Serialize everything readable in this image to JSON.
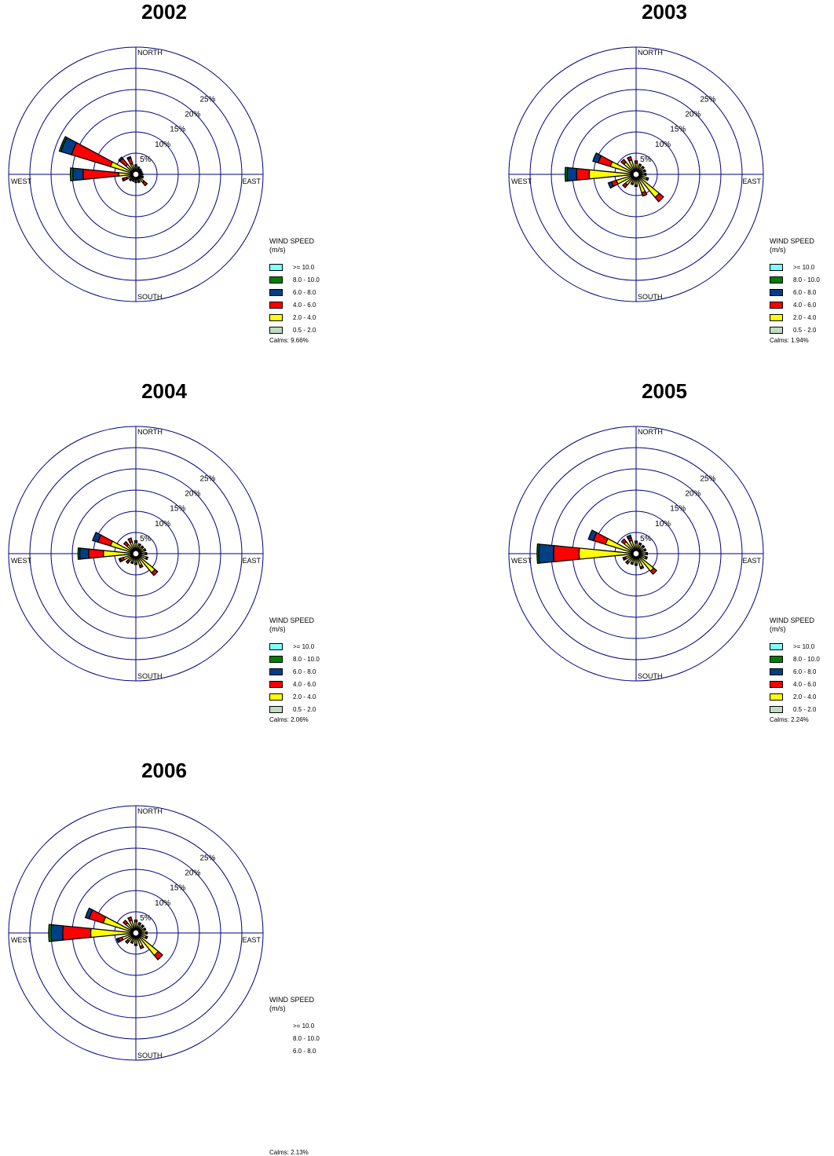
{
  "chart_data": [
    {
      "type": "wind-rose",
      "title": "2002",
      "compass_labels": {
        "north": "NORTH",
        "south": "SOUTH",
        "east": "EAST",
        "west": "WEST"
      },
      "rings": [
        5,
        10,
        15,
        20,
        25
      ],
      "ring_labels": [
        "5%",
        "10%",
        "15%",
        "20%",
        "25%"
      ],
      "legend_title": "WIND SPEED",
      "legend_unit": "(m/s)",
      "calms": "Calms: 9.66%",
      "petals": [
        {
          "dir": 292.5,
          "segs": [
            0.5,
            5.2,
            9.6,
            2.6,
            0.4,
            0
          ]
        },
        {
          "dir": 270,
          "segs": [
            0.5,
            3.0,
            8.4,
            2.4,
            0.6,
            0
          ]
        },
        {
          "dir": 315,
          "segs": [
            0.3,
            2.2,
            1.8,
            0.4,
            0,
            0
          ]
        },
        {
          "dir": 337.5,
          "segs": [
            0.3,
            1.8,
            1.4,
            0.3,
            0,
            0
          ]
        },
        {
          "dir": 135,
          "segs": [
            0.3,
            1.6,
            1.0,
            0,
            0,
            0
          ]
        },
        {
          "dir": 247.5,
          "segs": [
            0.3,
            1.4,
            0.8,
            0.3,
            0,
            0
          ]
        },
        {
          "dir": 0,
          "segs": [
            0.3,
            1.0,
            0.4,
            0,
            0,
            0
          ]
        },
        {
          "dir": 22.5,
          "segs": [
            0.3,
            0.7,
            0.3,
            0,
            0,
            0
          ]
        },
        {
          "dir": 45,
          "segs": [
            0.3,
            0.6,
            0.2,
            0,
            0,
            0
          ]
        },
        {
          "dir": 67.5,
          "segs": [
            0.3,
            0.5,
            0.2,
            0,
            0,
            0
          ]
        },
        {
          "dir": 90,
          "segs": [
            0.3,
            0.6,
            0.2,
            0,
            0,
            0
          ]
        },
        {
          "dir": 112.5,
          "segs": [
            0.3,
            0.7,
            0.3,
            0,
            0,
            0
          ]
        },
        {
          "dir": 157.5,
          "segs": [
            0.3,
            0.9,
            0.3,
            0,
            0,
            0
          ]
        },
        {
          "dir": 180,
          "segs": [
            0.3,
            0.8,
            0.3,
            0,
            0,
            0
          ]
        },
        {
          "dir": 202.5,
          "segs": [
            0.3,
            0.7,
            0.2,
            0,
            0,
            0
          ]
        },
        {
          "dir": 225,
          "segs": [
            0.3,
            0.8,
            0.3,
            0,
            0,
            0
          ]
        }
      ]
    },
    {
      "type": "wind-rose",
      "title": "2003",
      "compass_labels": {
        "north": "NORTH",
        "south": "SOUTH",
        "east": "EAST",
        "west": "WEST"
      },
      "rings": [
        5,
        10,
        15,
        20,
        25
      ],
      "ring_labels": [
        "5%",
        "10%",
        "15%",
        "20%",
        "25%"
      ],
      "legend_title": "WIND SPEED",
      "legend_unit": "(m/s)",
      "calms": "Calms: 1.94%",
      "petals": [
        {
          "dir": 270,
          "segs": [
            0.5,
            10.0,
            3.0,
            2.2,
            0.5,
            0
          ]
        },
        {
          "dir": 292.5,
          "segs": [
            0.5,
            5.3,
            3.0,
            1.3,
            0,
            0
          ]
        },
        {
          "dir": 135,
          "segs": [
            0.5,
            6.0,
            1.3,
            0,
            0,
            0
          ]
        },
        {
          "dir": 315,
          "segs": [
            0.5,
            2.7,
            0.8,
            0,
            0,
            0
          ]
        },
        {
          "dir": 337.5,
          "segs": [
            0.5,
            2.5,
            0.8,
            0,
            0,
            0
          ]
        },
        {
          "dir": 157.5,
          "segs": [
            0.5,
            3.5,
            0.8,
            0,
            0,
            0
          ]
        },
        {
          "dir": 247.5,
          "segs": [
            0.5,
            3.8,
            1.2,
            0.8,
            0,
            0
          ]
        },
        {
          "dir": 225,
          "segs": [
            0.5,
            2.2,
            0.8,
            0,
            0,
            0
          ]
        },
        {
          "dir": 0,
          "segs": [
            0.5,
            1.6,
            0.5,
            0,
            0,
            0
          ]
        },
        {
          "dir": 22.5,
          "segs": [
            0.5,
            1.2,
            0.3,
            0,
            0,
            0
          ]
        },
        {
          "dir": 45,
          "segs": [
            0.5,
            1.1,
            0.3,
            0,
            0,
            0
          ]
        },
        {
          "dir": 67.5,
          "segs": [
            0.5,
            1.0,
            0.3,
            0,
            0,
            0
          ]
        },
        {
          "dir": 90,
          "segs": [
            0.5,
            1.0,
            0.3,
            0,
            0,
            0
          ]
        },
        {
          "dir": 112.5,
          "segs": [
            0.5,
            1.6,
            0.4,
            0,
            0,
            0
          ]
        },
        {
          "dir": 180,
          "segs": [
            0.5,
            1.5,
            0.3,
            0,
            0,
            0
          ]
        },
        {
          "dir": 202.5,
          "segs": [
            0.5,
            1.2,
            0.3,
            0,
            0,
            0
          ]
        }
      ]
    },
    {
      "type": "wind-rose",
      "title": "2004",
      "compass_labels": {
        "north": "NORTH",
        "south": "SOUTH",
        "east": "EAST",
        "west": "WEST"
      },
      "rings": [
        5,
        10,
        15,
        20,
        25
      ],
      "ring_labels": [
        "5%",
        "10%",
        "15%",
        "20%",
        "25%"
      ],
      "legend_title": "WIND SPEED",
      "legend_unit": "(m/s)",
      "calms": "Calms: 2.06%",
      "petals": [
        {
          "dir": 270,
          "segs": [
            0.5,
            6.6,
            3.5,
            2.1,
            0.4,
            0
          ]
        },
        {
          "dir": 292.5,
          "segs": [
            0.5,
            5.2,
            3.1,
            1.3,
            0,
            0
          ]
        },
        {
          "dir": 135,
          "segs": [
            0.5,
            4.8,
            0.8,
            0,
            0,
            0
          ]
        },
        {
          "dir": 315,
          "segs": [
            0.5,
            1.7,
            0.9,
            0,
            0,
            0
          ]
        },
        {
          "dir": 337.5,
          "segs": [
            0.5,
            1.9,
            0.9,
            0,
            0,
            0
          ]
        },
        {
          "dir": 157.5,
          "segs": [
            0.5,
            1.9,
            0.5,
            0,
            0,
            0
          ]
        },
        {
          "dir": 247.5,
          "segs": [
            0.5,
            2.0,
            0.8,
            0.3,
            0,
            0
          ]
        },
        {
          "dir": 225,
          "segs": [
            0.5,
            1.3,
            0.6,
            0,
            0,
            0
          ]
        },
        {
          "dir": 0,
          "segs": [
            0.5,
            1.6,
            0.4,
            0,
            0,
            0
          ]
        },
        {
          "dir": 22.5,
          "segs": [
            0.5,
            1.1,
            0.3,
            0,
            0,
            0
          ]
        },
        {
          "dir": 45,
          "segs": [
            0.5,
            1.0,
            0.3,
            0,
            0,
            0
          ]
        },
        {
          "dir": 67.5,
          "segs": [
            0.5,
            1.1,
            0.3,
            0,
            0,
            0
          ]
        },
        {
          "dir": 90,
          "segs": [
            0.5,
            1.2,
            0.3,
            0,
            0,
            0
          ]
        },
        {
          "dir": 112.5,
          "segs": [
            0.5,
            1.6,
            0.3,
            0,
            0,
            0
          ]
        },
        {
          "dir": 180,
          "segs": [
            0.5,
            1.2,
            0.3,
            0,
            0,
            0
          ]
        },
        {
          "dir": 202.5,
          "segs": [
            0.5,
            1.1,
            0.3,
            0,
            0,
            0
          ]
        }
      ]
    },
    {
      "type": "wind-rose",
      "title": "2005",
      "compass_labels": {
        "north": "NORTH",
        "south": "SOUTH",
        "east": "EAST",
        "west": "WEST"
      },
      "rings": [
        5,
        10,
        15,
        20,
        25
      ],
      "ring_labels": [
        "5%",
        "10%",
        "15%",
        "20%",
        "25%"
      ],
      "legend_title": "WIND SPEED",
      "legend_unit": "(m/s)",
      "calms": "Calms: 2.24%",
      "petals": [
        {
          "dir": 270,
          "segs": [
            0.5,
            12.4,
            6.0,
            3.5,
            0.4,
            0
          ]
        },
        {
          "dir": 292.5,
          "segs": [
            0.5,
            6.5,
            3.0,
            1.2,
            0,
            0
          ]
        },
        {
          "dir": 135,
          "segs": [
            0.5,
            4.3,
            0.9,
            0,
            0,
            0
          ]
        },
        {
          "dir": 315,
          "segs": [
            0.5,
            2.6,
            0.8,
            0,
            0,
            0
          ]
        },
        {
          "dir": 337.5,
          "segs": [
            0.5,
            2.2,
            0.7,
            0.6,
            0,
            0
          ]
        },
        {
          "dir": 157.5,
          "segs": [
            0.5,
            2.3,
            0.4,
            0,
            0,
            0
          ]
        },
        {
          "dir": 247.5,
          "segs": [
            0.5,
            1.6,
            0.4,
            0.2,
            0,
            0
          ]
        },
        {
          "dir": 225,
          "segs": [
            0.5,
            1.6,
            0.5,
            0,
            0,
            0
          ]
        },
        {
          "dir": 0,
          "segs": [
            0.5,
            1.5,
            0.4,
            0,
            0,
            0
          ]
        },
        {
          "dir": 22.5,
          "segs": [
            0.5,
            1.3,
            0.3,
            0,
            0,
            0
          ]
        },
        {
          "dir": 45,
          "segs": [
            0.5,
            1.2,
            0.3,
            0,
            0,
            0
          ]
        },
        {
          "dir": 67.5,
          "segs": [
            0.5,
            1.1,
            0.3,
            0,
            0,
            0
          ]
        },
        {
          "dir": 90,
          "segs": [
            0.5,
            1.3,
            0.3,
            0,
            0,
            0
          ]
        },
        {
          "dir": 112.5,
          "segs": [
            0.5,
            1.4,
            0.3,
            0,
            0,
            0
          ]
        },
        {
          "dir": 180,
          "segs": [
            0.5,
            1.4,
            0.3,
            0,
            0,
            0
          ]
        },
        {
          "dir": 202.5,
          "segs": [
            0.5,
            1.3,
            0.3,
            0,
            0,
            0
          ]
        }
      ]
    },
    {
      "type": "wind-rose",
      "title": "2006",
      "compass_labels": {
        "north": "NORTH",
        "south": "SOUTH",
        "east": "EAST",
        "west": "WEST"
      },
      "rings": [
        5,
        10,
        15,
        20,
        25
      ],
      "ring_labels": [
        "5%",
        "10%",
        "15%",
        "20%",
        "25%"
      ],
      "legend_title": "WIND SPEED",
      "legend_unit": "(m/s)",
      "calms": "Calms: 2.13%",
      "legend_visible_rows": 3,
      "petals": [
        {
          "dir": 270,
          "segs": [
            0.5,
            9.6,
            6.6,
            2.7,
            0.6,
            0
          ]
        },
        {
          "dir": 292.5,
          "segs": [
            0.5,
            7.0,
            3.5,
            0.9,
            0,
            0
          ]
        },
        {
          "dir": 135,
          "segs": [
            0.5,
            5.8,
            1.3,
            0,
            0,
            0
          ]
        },
        {
          "dir": 315,
          "segs": [
            0.5,
            2.0,
            0.8,
            0,
            0,
            0
          ]
        },
        {
          "dir": 337.5,
          "segs": [
            0.5,
            2.1,
            0.8,
            0,
            0,
            0
          ]
        },
        {
          "dir": 157.5,
          "segs": [
            0.5,
            2.3,
            0.5,
            0,
            0,
            0
          ]
        },
        {
          "dir": 247.5,
          "segs": [
            0.5,
            2.4,
            0.8,
            0.5,
            0,
            0
          ]
        },
        {
          "dir": 225,
          "segs": [
            0.5,
            1.5,
            0.6,
            0,
            0,
            0
          ]
        },
        {
          "dir": 0,
          "segs": [
            0.5,
            1.6,
            0.4,
            0,
            0,
            0
          ]
        },
        {
          "dir": 22.5,
          "segs": [
            0.5,
            1.2,
            0.3,
            0,
            0,
            0
          ]
        },
        {
          "dir": 45,
          "segs": [
            0.5,
            1.1,
            0.3,
            0,
            0,
            0
          ]
        },
        {
          "dir": 67.5,
          "segs": [
            0.5,
            1.1,
            0.3,
            0,
            0,
            0
          ]
        },
        {
          "dir": 90,
          "segs": [
            0.5,
            1.3,
            0.3,
            0,
            0,
            0
          ]
        },
        {
          "dir": 112.5,
          "segs": [
            0.5,
            1.5,
            0.3,
            0,
            0,
            0
          ]
        },
        {
          "dir": 180,
          "segs": [
            0.5,
            1.6,
            0.3,
            0,
            0,
            0
          ]
        },
        {
          "dir": 202.5,
          "segs": [
            0.5,
            1.2,
            0.3,
            0,
            0,
            0
          ]
        }
      ]
    }
  ],
  "speed_classes": [
    {
      "label": ">= 10.0",
      "color": "#80ffff"
    },
    {
      "label": "8.0 - 10.0",
      "color": "#008000"
    },
    {
      "label": "6.0 -  8.0",
      "color": "#003f87"
    },
    {
      "label": "4.0 -  6.0",
      "color": "#ff0000"
    },
    {
      "label": "2.0 -  4.0",
      "color": "#ffff00"
    },
    {
      "label": "0.5 -  2.0",
      "color": "#c0dcc0"
    }
  ],
  "colors": {
    "grid": "#000080",
    "outline": "#000000"
  }
}
